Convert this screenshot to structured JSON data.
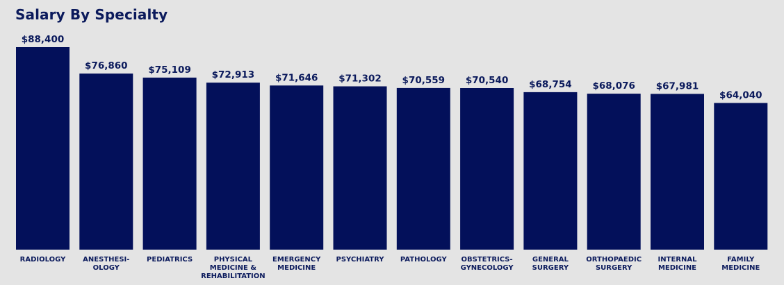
{
  "chart_data": {
    "type": "bar",
    "title": "Salary By Specialty",
    "xlabel": "",
    "ylabel": "",
    "ylim": [
      0,
      88400
    ],
    "grid": false,
    "legend": "none",
    "bar_color": "#03105a",
    "categories": [
      [
        "RADIOLOGY"
      ],
      [
        "ANESTHESI-",
        "OLOGY"
      ],
      [
        "PEDIATRICS"
      ],
      [
        "PHYSICAL",
        "MEDICINE &",
        "REHABILITATION"
      ],
      [
        "EMERGENCY",
        "MEDICINE"
      ],
      [
        "PSYCHIATRY"
      ],
      [
        "PATHOLOGY"
      ],
      [
        "OBSTETRICS-",
        "GYNECOLOGY"
      ],
      [
        "GENERAL",
        "SURGERY"
      ],
      [
        "ORTHOPAEDIC",
        "SURGERY"
      ],
      [
        "INTERNAL",
        "MEDICINE"
      ],
      [
        "FAMILY",
        "MEDICINE"
      ]
    ],
    "values": [
      88400,
      76860,
      75109,
      72913,
      71646,
      71302,
      70559,
      70540,
      68754,
      68076,
      67981,
      64040
    ],
    "value_labels": [
      "$88,400",
      "$76,860",
      "$75,109",
      "$72,913",
      "$71,646",
      "$71,302",
      "$70,559",
      "$70,540",
      "$68,754",
      "$68,076",
      "$67,981",
      "$64,040"
    ]
  }
}
